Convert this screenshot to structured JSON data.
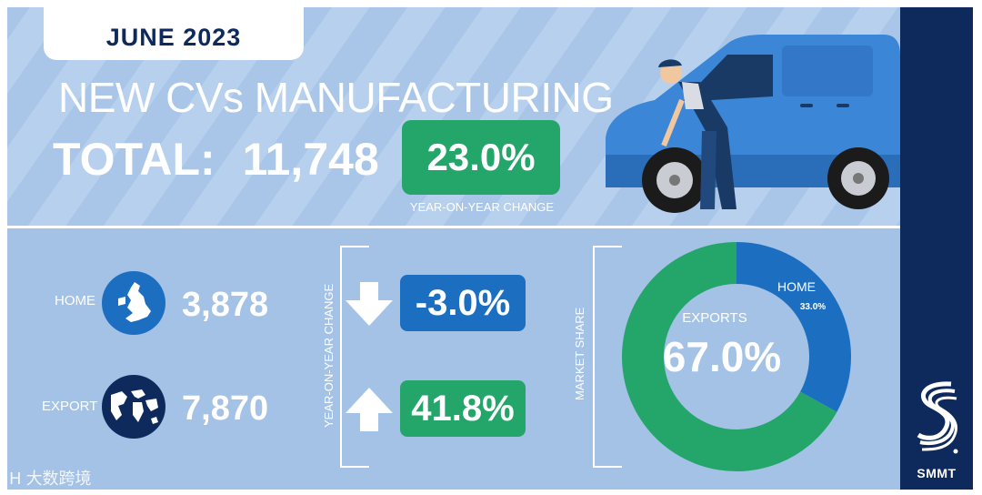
{
  "header": {
    "date": "JUNE 2023",
    "title": "NEW CVs MANUFACTURING",
    "total_label": "TOTAL:",
    "total_value": "11,748",
    "yoy_value": "23.0%",
    "yoy_caption": "YEAR-ON-YEAR CHANGE"
  },
  "rows": [
    {
      "label": "HOME",
      "value": "3,878",
      "change": "-3.0%",
      "direction": "down",
      "box_color": "#1c6fc0",
      "icon": "uk-map-icon"
    },
    {
      "label": "EXPORT",
      "value": "7,870",
      "change": "41.8%",
      "direction": "up",
      "box_color": "#24a66a",
      "icon": "world-globe-icon"
    }
  ],
  "yoy_vertical_label": "YEAR-ON-YEAR CHANGE",
  "market_share_label": "MARKET SHARE",
  "donut": {
    "exports_label": "EXPORTS",
    "exports_value": "67.0%",
    "home_label": "HOME",
    "home_value": "33.0%"
  },
  "brand": {
    "name": "SMMT"
  },
  "watermark": "大数跨境",
  "colors": {
    "navy": "#0e2a5c",
    "green": "#24a66a",
    "blue": "#1c6fc0",
    "light_blue_bg": "#a9c6e9"
  },
  "chart_data": {
    "type": "pie",
    "categories": [
      "EXPORTS",
      "HOME"
    ],
    "values": [
      67.0,
      33.0
    ],
    "colors": [
      "#24a66a",
      "#1c6fc0"
    ],
    "title": "MARKET SHARE"
  }
}
